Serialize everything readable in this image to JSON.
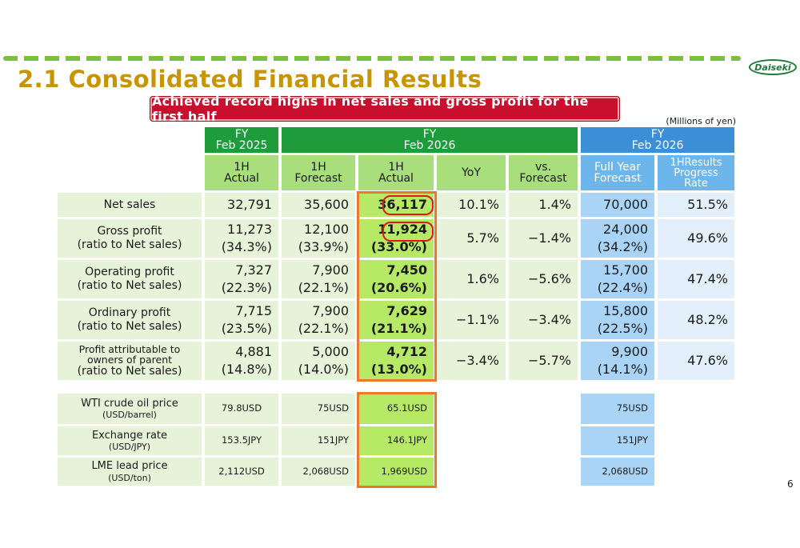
{
  "title": "2.1  Consolidated Financial Results",
  "logo_text": "Daiseki",
  "banner": "Achieved record highs in net sales and gross profit for the first half",
  "unit": "(Millions of yen)",
  "page_number": "6",
  "headers": {
    "fy2025": [
      "FY",
      "Feb 2025"
    ],
    "fy2026": [
      "FY",
      "Feb 2026"
    ],
    "fy2026_full": [
      "FY",
      "Feb 2026"
    ],
    "cols": {
      "h1_actual_2025": [
        "1H",
        "Actual"
      ],
      "h1_forecast": [
        "1H",
        "Forecast"
      ],
      "h1_actual_2026": [
        "1H",
        "Actual"
      ],
      "yoy": "YoY",
      "vs_forecast": [
        "vs.",
        "Forecast"
      ],
      "full_year_forecast": [
        "Full Year",
        "Forecast"
      ],
      "progress_rate": [
        "1HResults",
        "Progress",
        "Rate"
      ]
    }
  },
  "rows": [
    {
      "label": [
        "Net sales"
      ],
      "a2025": [
        "32,791"
      ],
      "fcst": [
        "35,600"
      ],
      "a2026": [
        "36,117"
      ],
      "yoy": "10.1%",
      "vs": "1.4%",
      "fy_fcst": [
        "70,000"
      ],
      "progress": "51.5%"
    },
    {
      "label": [
        "Gross profit",
        "(ratio to Net sales)"
      ],
      "a2025": [
        "11,273",
        "(34.3%)"
      ],
      "fcst": [
        "12,100",
        "(33.9%)"
      ],
      "a2026": [
        "11,924",
        "(33.0%)"
      ],
      "yoy": "5.7%",
      "vs": "−1.4%",
      "fy_fcst": [
        "24,000",
        "(34.2%)"
      ],
      "progress": "49.6%"
    },
    {
      "label": [
        "Operating profit",
        "(ratio to Net sales)"
      ],
      "a2025": [
        "7,327",
        "(22.3%)"
      ],
      "fcst": [
        "7,900",
        "(22.1%)"
      ],
      "a2026": [
        "7,450",
        "(20.6%)"
      ],
      "yoy": "1.6%",
      "vs": "−5.6%",
      "fy_fcst": [
        "15,700",
        "(22.4%)"
      ],
      "progress": "47.4%"
    },
    {
      "label": [
        "Ordinary profit",
        "(ratio to Net sales)"
      ],
      "a2025": [
        "7,715",
        "(23.5%)"
      ],
      "fcst": [
        "7,900",
        "(22.1%)"
      ],
      "a2026": [
        "7,629",
        "(21.1%)"
      ],
      "yoy": "−1.1%",
      "vs": "−3.4%",
      "fy_fcst": [
        "15,800",
        "(22.5%)"
      ],
      "progress": "48.2%"
    },
    {
      "label": [
        "Profit attributable to",
        "owners of parent",
        "(ratio to Net sales)"
      ],
      "a2025": [
        "4,881",
        "(14.8%)"
      ],
      "fcst": [
        "5,000",
        "(14.0%)"
      ],
      "a2026": [
        "4,712",
        "(13.0%)"
      ],
      "yoy": "−3.4%",
      "vs": "−5.7%",
      "fy_fcst": [
        "9,900",
        "(14.1%)"
      ],
      "progress": "47.6%"
    }
  ],
  "assumptions": [
    {
      "label": "WTI crude oil price",
      "sub": "(USD/barrel)",
      "a2025": "79.8USD",
      "fcst": "75USD",
      "a2026": "65.1USD",
      "fy_fcst": "75USD"
    },
    {
      "label": "Exchange rate",
      "sub": "(USD/JPY)",
      "a2025": "153.5JPY",
      "fcst": "151JPY",
      "a2026": "146.1JPY",
      "fy_fcst": "151JPY"
    },
    {
      "label": "LME lead price",
      "sub": "(USD/ton)",
      "a2025": "2,112USD",
      "fcst": "2,068USD",
      "a2026": "1,969USD",
      "fy_fcst": "2,068USD"
    }
  ],
  "colors": {
    "title": "#c89400",
    "banner": "#c8102e",
    "header_dark_green": "#1e9c3c",
    "header_light_green": "#a9de7c",
    "highlight": "#b6ea66",
    "blue": "#3b8fd6",
    "outline_orange": "#e8792e",
    "ring_red": "#e01818"
  }
}
